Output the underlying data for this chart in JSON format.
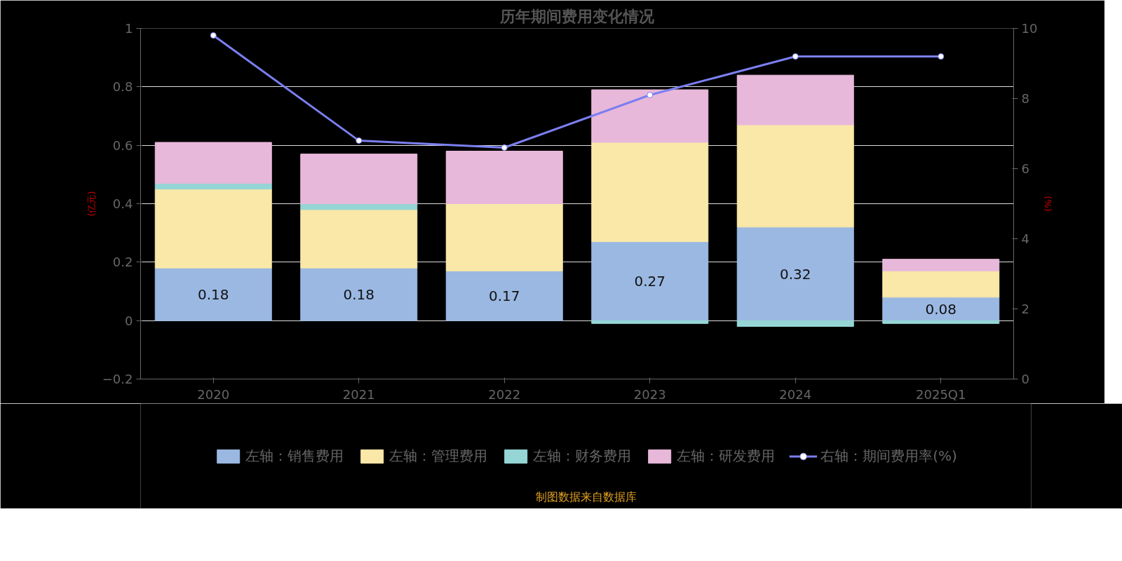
{
  "chart_data": {
    "type": "bar",
    "title": "历年期间费用变化情况",
    "ylabel": "(亿元)",
    "y2label": "(%)",
    "stacked": true,
    "grid": "y",
    "legend": "bottom",
    "categories": [
      "2020",
      "2021",
      "2022",
      "2023",
      "2024",
      "2025Q1"
    ],
    "ylim": [
      -0.2,
      1
    ],
    "yticks": [
      -0.2,
      0,
      0.2,
      0.4,
      0.6,
      0.8,
      1
    ],
    "y2lim": [
      0,
      10
    ],
    "y2ticks": [
      0,
      2,
      4,
      6,
      8,
      10
    ],
    "series": [
      {
        "name": "左轴：销售费用",
        "color": "#9ab8e2",
        "values": [
          0.18,
          0.18,
          0.17,
          0.27,
          0.32,
          0.08
        ],
        "value_labels": [
          "0.18",
          "0.18",
          "0.17",
          "0.27",
          "0.32",
          "0.08"
        ]
      },
      {
        "name": "左轴：管理费用",
        "color": "#f9e8a8",
        "values": [
          0.27,
          0.2,
          0.23,
          0.34,
          0.35,
          0.09
        ]
      },
      {
        "name": "左轴：财务费用",
        "color": "#96d5d6",
        "values": [
          0.02,
          0.02,
          0,
          -0.01,
          -0.02,
          -0.01
        ]
      },
      {
        "name": "左轴：研发费用",
        "color": "#e8b8da",
        "values": [
          0.14,
          0.17,
          0.18,
          0.18,
          0.17,
          0.04
        ]
      },
      {
        "name": "右轴：期间费用率(%)",
        "type": "line",
        "axis": "y2",
        "marker": "circle",
        "color": "#7b7ff0",
        "values": [
          9.8,
          6.8,
          6.6,
          8.1,
          9.2,
          9.2
        ]
      }
    ],
    "annotations": [
      "制图数据来自数据库"
    ]
  }
}
